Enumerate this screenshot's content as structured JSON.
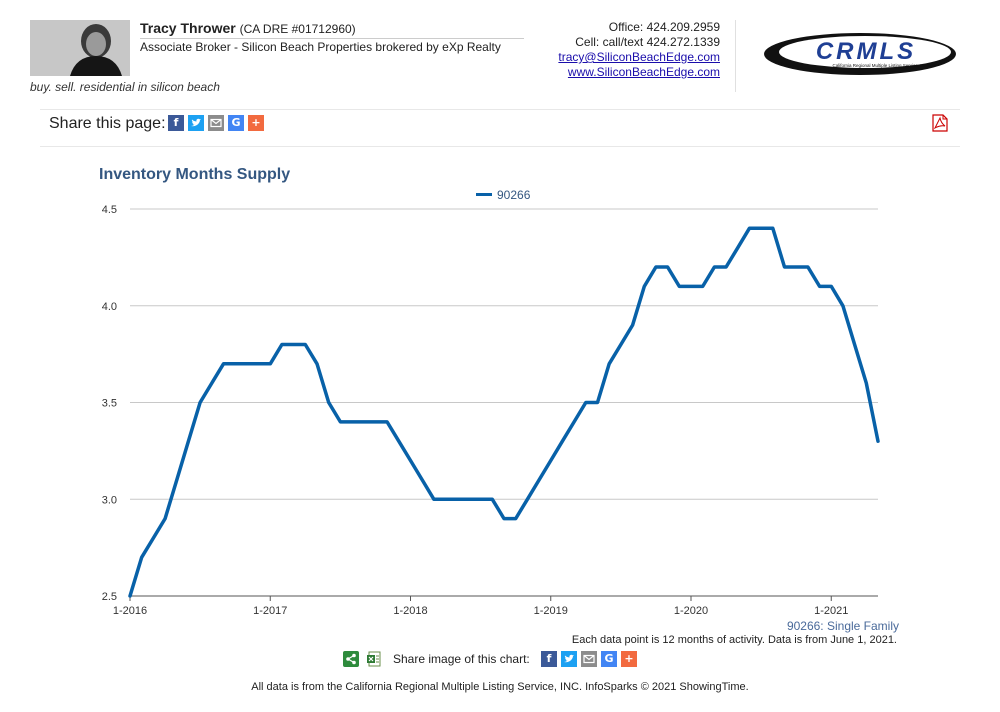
{
  "header": {
    "agent_name": "Tracy Thrower",
    "agent_dre": "(CA DRE #01712960)",
    "agent_title": "Associate Broker - Silicon Beach Properties brokered by eXp Realty",
    "tagline": "buy. sell. residential in silicon beach",
    "office": "Office: 424.209.2959",
    "cell": "Cell: call/text 424.272.1339",
    "email": "tracy@SiliconBeachEdge.com",
    "website": "www.SiliconBeachEdge.com",
    "logo_text": "CRMLS",
    "logo_subtext": "California Regional Multiple Listing Service, Inc."
  },
  "share": {
    "label": "Share this page:",
    "image_label": "Share image of this chart:",
    "icons": [
      "facebook-icon",
      "twitter-icon",
      "email-icon",
      "google-icon",
      "plus-icon"
    ]
  },
  "colors": {
    "series": "#0861a8",
    "title": "#345781",
    "facebook": "#3b5998",
    "twitter": "#1da1f2",
    "email": "#8c8c8c",
    "google": "#4285f4",
    "plus": "#f26a3f"
  },
  "chart_data": {
    "type": "line",
    "title": "Inventory Months Supply",
    "legend": "top-center",
    "grid": true,
    "ylim": [
      2.5,
      4.5
    ],
    "yticks": [
      "2.5",
      "3.0",
      "3.5",
      "4.0",
      "4.5"
    ],
    "xticks": [
      "1-2016",
      "1-2017",
      "1-2018",
      "1-2019",
      "1-2020",
      "1-2021"
    ],
    "series": [
      {
        "name": "90266",
        "points": [
          [
            "2016-01",
            2.5
          ],
          [
            "2016-02",
            2.7
          ],
          [
            "2016-03",
            2.8
          ],
          [
            "2016-04",
            2.9
          ],
          [
            "2016-05",
            3.1
          ],
          [
            "2016-06",
            3.3
          ],
          [
            "2016-07",
            3.5
          ],
          [
            "2016-08",
            3.6
          ],
          [
            "2016-09",
            3.7
          ],
          [
            "2016-10",
            3.7
          ],
          [
            "2016-11",
            3.7
          ],
          [
            "2016-12",
            3.7
          ],
          [
            "2017-01",
            3.7
          ],
          [
            "2017-02",
            3.8
          ],
          [
            "2017-03",
            3.8
          ],
          [
            "2017-04",
            3.8
          ],
          [
            "2017-05",
            3.7
          ],
          [
            "2017-06",
            3.5
          ],
          [
            "2017-07",
            3.4
          ],
          [
            "2017-08",
            3.4
          ],
          [
            "2017-09",
            3.4
          ],
          [
            "2017-10",
            3.4
          ],
          [
            "2017-11",
            3.4
          ],
          [
            "2017-12",
            3.3
          ],
          [
            "2018-01",
            3.2
          ],
          [
            "2018-02",
            3.1
          ],
          [
            "2018-03",
            3.0
          ],
          [
            "2018-04",
            3.0
          ],
          [
            "2018-05",
            3.0
          ],
          [
            "2018-06",
            3.0
          ],
          [
            "2018-07",
            3.0
          ],
          [
            "2018-08",
            3.0
          ],
          [
            "2018-09",
            2.9
          ],
          [
            "2018-10",
            2.9
          ],
          [
            "2018-11",
            3.0
          ],
          [
            "2018-12",
            3.1
          ],
          [
            "2019-01",
            3.2
          ],
          [
            "2019-02",
            3.3
          ],
          [
            "2019-03",
            3.4
          ],
          [
            "2019-04",
            3.5
          ],
          [
            "2019-05",
            3.5
          ],
          [
            "2019-06",
            3.7
          ],
          [
            "2019-07",
            3.8
          ],
          [
            "2019-08",
            3.9
          ],
          [
            "2019-09",
            4.1
          ],
          [
            "2019-10",
            4.2
          ],
          [
            "2019-11",
            4.2
          ],
          [
            "2019-12",
            4.1
          ],
          [
            "2020-01",
            4.1
          ],
          [
            "2020-02",
            4.1
          ],
          [
            "2020-03",
            4.2
          ],
          [
            "2020-04",
            4.2
          ],
          [
            "2020-05",
            4.3
          ],
          [
            "2020-06",
            4.4
          ],
          [
            "2020-07",
            4.4
          ],
          [
            "2020-08",
            4.4
          ],
          [
            "2020-09",
            4.2
          ],
          [
            "2020-10",
            4.2
          ],
          [
            "2020-11",
            4.2
          ],
          [
            "2020-12",
            4.1
          ],
          [
            "2021-01",
            4.1
          ],
          [
            "2021-02",
            4.0
          ],
          [
            "2021-03",
            3.8
          ],
          [
            "2021-04",
            3.6
          ],
          [
            "2021-05",
            3.3
          ]
        ]
      }
    ]
  },
  "footnote_series": "90266: Single Family",
  "footnote_data": "Each data point is 12 months of activity. Data is from June 1, 2021.",
  "footer": "All data is from the California Regional Multiple Listing Service, INC. InfoSparks © 2021 ShowingTime."
}
